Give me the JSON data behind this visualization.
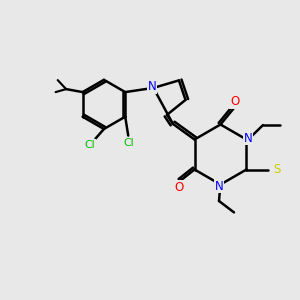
{
  "background_color": "#e8e8e8",
  "bond_color": "#000000",
  "nitrogen_color": "#0000ff",
  "oxygen_color": "#ff0000",
  "sulfur_color": "#cccc00",
  "chlorine_color": "#00bb00",
  "line_width": 1.8,
  "figsize": [
    3.0,
    3.0
  ],
  "dpi": 100,
  "xlim": [
    0,
    10
  ],
  "ylim": [
    0,
    10
  ]
}
